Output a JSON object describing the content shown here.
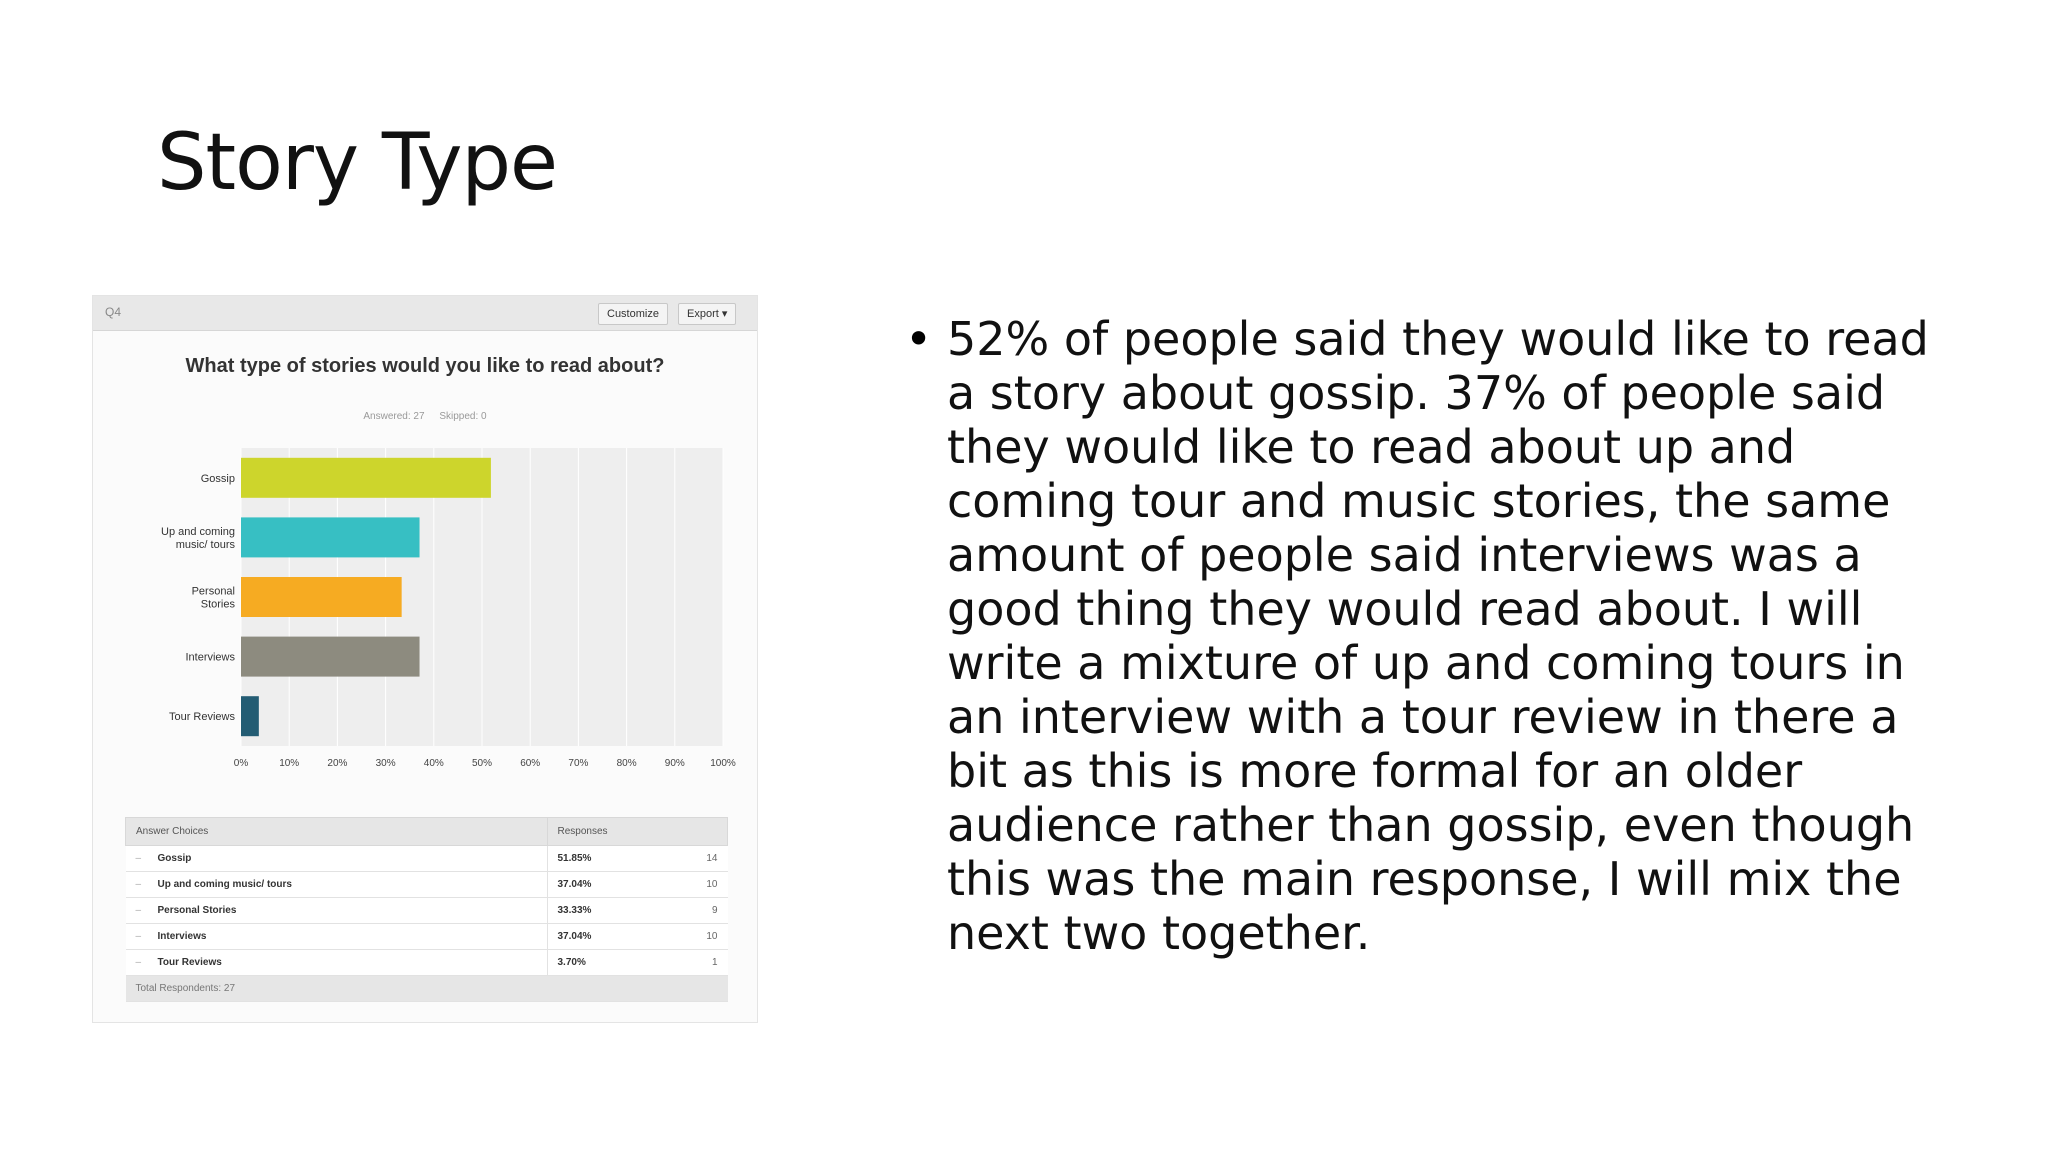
{
  "slide": {
    "title": "Story Type",
    "bullet": "52% of people said they would like to read a story about gossip. 37% of people said they would like to read about up and coming tour and music stories, the same amount of people said interviews was a good thing they would read about. I will write a mixture of up and coming tours in an interview with a tour review in there a bit as this is more formal for an older audience rather than gossip, even though this was the main response, I will mix the next two together."
  },
  "panel": {
    "question_label": "Q4",
    "customize_label": "Customize",
    "export_label": "Export ▾",
    "answered": "Answered: 27",
    "skipped": "Skipped: 0"
  },
  "chart_data": {
    "type": "bar",
    "orientation": "horizontal",
    "title": "What type of stories would you like to read about?",
    "categories": [
      "Gossip",
      "Up and coming music/ tours",
      "Personal Stories",
      "Interviews",
      "Tour Reviews"
    ],
    "category_lines": [
      [
        "Gossip"
      ],
      [
        "Up and coming",
        "music/ tours"
      ],
      [
        "Personal",
        "Stories"
      ],
      [
        "Interviews"
      ],
      [
        "Tour Reviews"
      ]
    ],
    "values": [
      51.85,
      37.04,
      33.33,
      37.04,
      3.7
    ],
    "colors": [
      "#cdd52c",
      "#37bfc3",
      "#f6ab22",
      "#8d8b7f",
      "#235c73"
    ],
    "xlim": [
      0,
      100
    ],
    "ticks": [
      "0%",
      "10%",
      "20%",
      "30%",
      "40%",
      "50%",
      "60%",
      "70%",
      "80%",
      "90%",
      "100%"
    ],
    "grid": true
  },
  "table": {
    "headers": [
      "Answer Choices",
      "Responses"
    ],
    "rows": [
      {
        "choice": "Gossip",
        "pct": "51.85%",
        "count": "14"
      },
      {
        "choice": "Up and coming music/ tours",
        "pct": "37.04%",
        "count": "10"
      },
      {
        "choice": "Personal Stories",
        "pct": "33.33%",
        "count": "9"
      },
      {
        "choice": "Interviews",
        "pct": "37.04%",
        "count": "10"
      },
      {
        "choice": "Tour Reviews",
        "pct": "3.70%",
        "count": "1"
      }
    ],
    "total": "Total Respondents: 27"
  }
}
